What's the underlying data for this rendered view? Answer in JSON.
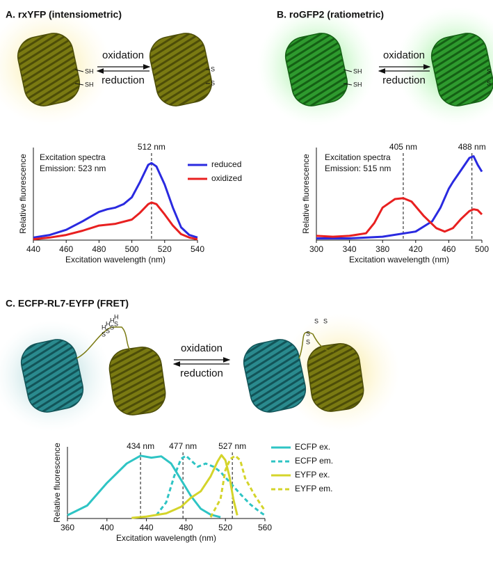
{
  "chart_data": [
    {
      "type": "line",
      "title": "A. rxYFP (intensiometric)",
      "notes": [
        "Excitation spectra",
        "Emission: 523 nm"
      ],
      "xlabel": "Excitation wavelength (nm)",
      "ylabel": "Relative fluorescence",
      "xlim": [
        440,
        540
      ],
      "xticks": [
        440,
        460,
        480,
        500,
        520,
        540
      ],
      "ylim": [
        0,
        100
      ],
      "legend": "right",
      "markers": [
        {
          "label": "512 nm",
          "x": 512
        }
      ],
      "series": [
        {
          "name": "reduced",
          "color": "#2a2ae0",
          "dash": false,
          "x": [
            440,
            450,
            460,
            470,
            480,
            485,
            490,
            495,
            500,
            505,
            510,
            512,
            515,
            520,
            525,
            530,
            535,
            540
          ],
          "values": [
            3,
            6,
            12,
            22,
            33,
            36,
            38,
            42,
            50,
            68,
            88,
            90,
            86,
            65,
            38,
            15,
            6,
            3
          ]
        },
        {
          "name": "oxidized",
          "color": "#e82020",
          "dash": false,
          "x": [
            440,
            450,
            460,
            470,
            480,
            490,
            500,
            505,
            510,
            512,
            515,
            520,
            525,
            530,
            535,
            540
          ],
          "values": [
            1,
            3,
            6,
            11,
            17,
            19,
            24,
            32,
            42,
            44,
            42,
            30,
            17,
            7,
            3,
            1
          ]
        }
      ]
    },
    {
      "type": "line",
      "title": "B. roGFP2 (ratiometric)",
      "notes": [
        "Excitation spectra",
        "Emission: 515 nm"
      ],
      "xlabel": "Excitation wavelength (nm)",
      "ylabel": "Relative fluorescence",
      "xlim": [
        300,
        500
      ],
      "xticks": [
        300,
        340,
        380,
        420,
        460,
        500
      ],
      "ylim": [
        0,
        100
      ],
      "markers": [
        {
          "label": "405 nm",
          "x": 405
        },
        {
          "label": "488 nm",
          "x": 488
        }
      ],
      "series": [
        {
          "color": "#2a2ae0",
          "dash": false,
          "x": [
            300,
            340,
            380,
            420,
            440,
            450,
            460,
            465,
            475,
            485,
            490,
            495,
            500
          ],
          "values": [
            2,
            2,
            4,
            10,
            22,
            38,
            60,
            68,
            82,
            96,
            98,
            88,
            80
          ]
        },
        {
          "color": "#e82020",
          "dash": false,
          "x": [
            300,
            320,
            340,
            360,
            370,
            380,
            395,
            405,
            415,
            430,
            445,
            455,
            465,
            475,
            485,
            490,
            495,
            500
          ],
          "values": [
            5,
            4,
            5,
            8,
            20,
            38,
            48,
            49,
            45,
            28,
            14,
            10,
            14,
            25,
            34,
            36,
            35,
            30
          ]
        }
      ]
    },
    {
      "type": "line",
      "title": "C. ECFP-RL7-EYFP (FRET)",
      "xlabel": "Excitation wavelength (nm)",
      "ylabel": "Relative fluorescence",
      "xlim": [
        360,
        560
      ],
      "xticks": [
        360,
        400,
        440,
        480,
        520,
        560
      ],
      "ylim": [
        0,
        100
      ],
      "legend": "right",
      "markers": [
        {
          "label": "434 nm",
          "x": 434
        },
        {
          "label": "477 nm",
          "x": 477
        },
        {
          "label": "527 nm",
          "x": 527
        }
      ],
      "series": [
        {
          "name": "ECFP ex.",
          "color": "#2ec4c4",
          "dash": false,
          "x": [
            360,
            380,
            400,
            420,
            434,
            445,
            455,
            465,
            475,
            485,
            495,
            505,
            515
          ],
          "values": [
            5,
            20,
            55,
            85,
            97,
            94,
            96,
            85,
            60,
            35,
            15,
            6,
            2
          ]
        },
        {
          "name": "ECFP em.",
          "color": "#2ec4c4",
          "dash": true,
          "x": [
            450,
            460,
            468,
            475,
            480,
            485,
            492,
            500,
            508,
            515,
            525,
            535,
            545,
            555,
            560
          ],
          "values": [
            5,
            25,
            65,
            92,
            97,
            90,
            80,
            85,
            80,
            72,
            55,
            38,
            22,
            10,
            5
          ]
        },
        {
          "name": "EYFP ex.",
          "color": "#d4d42a",
          "dash": false,
          "x": [
            425,
            440,
            460,
            475,
            485,
            495,
            505,
            512,
            516,
            520,
            524,
            528,
            532
          ],
          "values": [
            1,
            3,
            8,
            18,
            32,
            42,
            65,
            88,
            98,
            90,
            65,
            30,
            5
          ]
        },
        {
          "name": "EYFP em.",
          "color": "#d4d42a",
          "dash": true,
          "x": [
            505,
            515,
            520,
            525,
            530,
            535,
            540,
            550,
            560
          ],
          "values": [
            2,
            30,
            75,
            92,
            97,
            90,
            62,
            35,
            12
          ]
        }
      ]
    }
  ],
  "diagrams": [
    {
      "arrow_labels": [
        "oxidation",
        "reduction"
      ],
      "reduced_groups": [
        "SH",
        "SH"
      ],
      "oxidized_groups": [
        "S",
        "S"
      ]
    },
    {
      "arrow_labels": [
        "oxidation",
        "reduction"
      ],
      "reduced_groups": [
        "SH",
        "SH"
      ],
      "oxidized_groups": [
        "S",
        "S"
      ]
    },
    {
      "arrow_labels": [
        "oxidation",
        "reduction"
      ],
      "reduced_groups": [
        "H",
        "H",
        "H",
        "H",
        "S",
        "S",
        "S",
        "S"
      ],
      "oxidized_groups": [
        "S",
        "S",
        "S",
        "S"
      ]
    }
  ]
}
